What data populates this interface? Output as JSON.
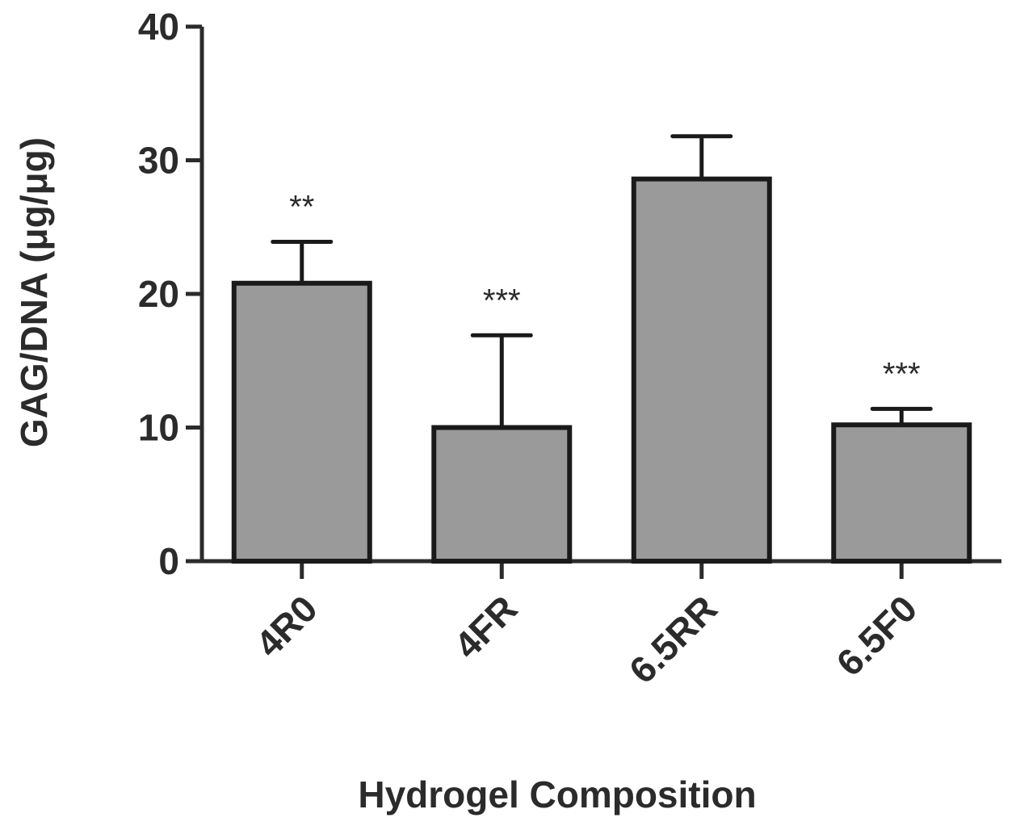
{
  "chart_data": {
    "type": "bar",
    "categories": [
      "4R0",
      "4FR",
      "6.5RR",
      "6.5F0"
    ],
    "values": [
      20.8,
      10.0,
      28.6,
      10.2
    ],
    "errors": [
      3.1,
      6.9,
      3.2,
      1.2
    ],
    "significance": [
      "**",
      "***",
      "",
      "***"
    ],
    "xlabel": "Hydrogel Composition",
    "ylabel": "GAG/DNA (μg/μg)",
    "ylim": [
      0,
      40
    ],
    "yticks": [
      0,
      10,
      20,
      30,
      40
    ],
    "grid": false,
    "colors": {
      "bar_fill": "#9a9a9a",
      "bar_stroke": "#1a1a1a",
      "axis": "#2b2b2b"
    }
  }
}
